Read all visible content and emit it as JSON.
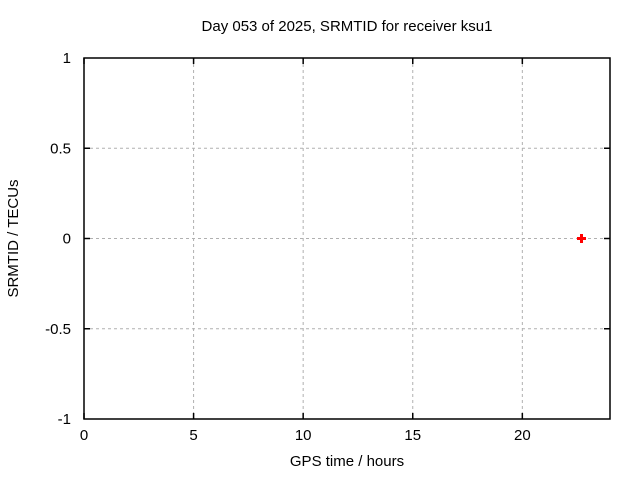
{
  "window": {
    "background": "#ffffff"
  },
  "chart_data": {
    "type": "scatter",
    "title": "Day 053 of 2025, SRMTID for receiver ksu1",
    "xlabel": "GPS time / hours",
    "ylabel": "SRMTID / TECUs",
    "xlim": [
      0,
      24
    ],
    "ylim": [
      -1,
      1
    ],
    "xticks": [
      0,
      5,
      10,
      15,
      20
    ],
    "yticks": [
      -1,
      -0.5,
      0,
      0.5,
      1
    ],
    "grid": true,
    "grid_color": "#b0b0b0",
    "axis_color": "#000000",
    "legend": "none",
    "series": [
      {
        "name": "SRMTID",
        "marker": "plus",
        "color": "#ff0000",
        "points": [
          {
            "x": 22.7,
            "y": 0
          }
        ]
      }
    ]
  }
}
